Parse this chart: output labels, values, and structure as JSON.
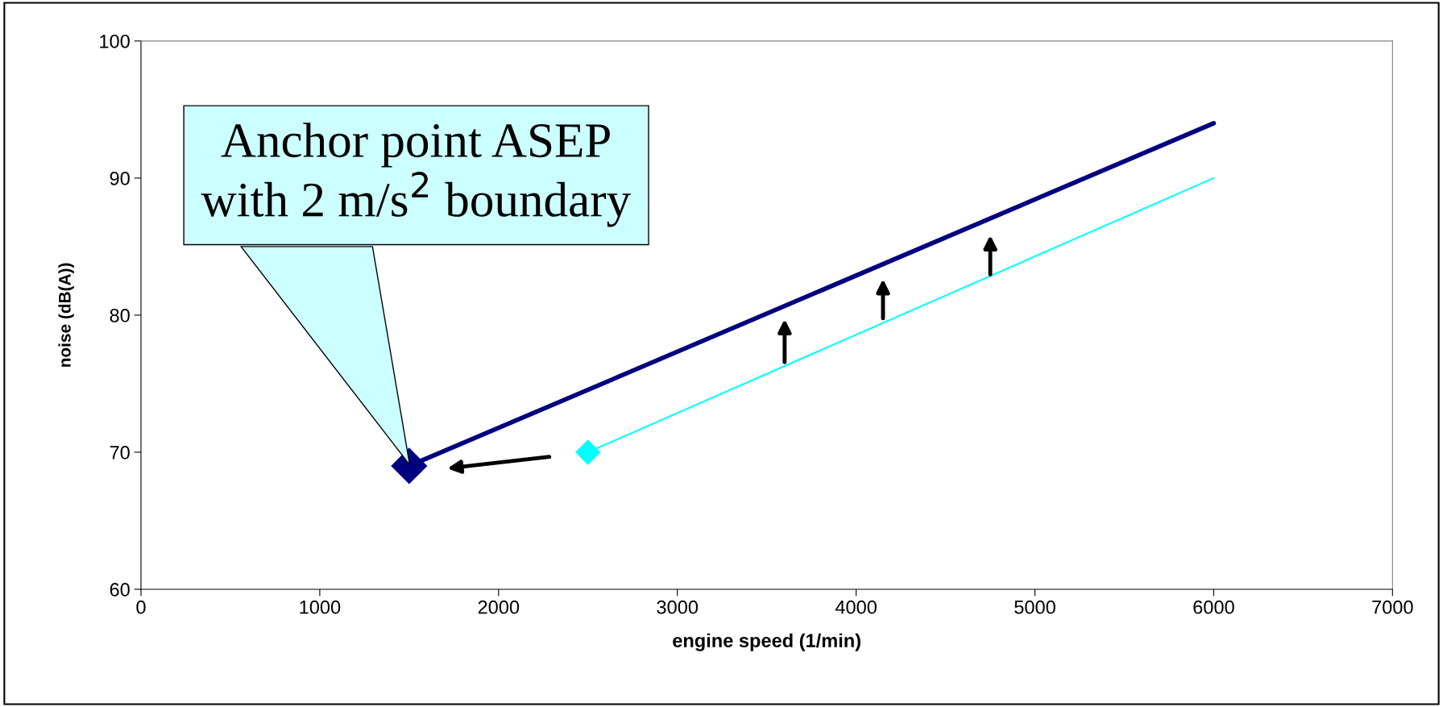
{
  "chart_data": {
    "type": "line",
    "xlabel": "engine speed (1/min)",
    "ylabel": "noise (dB(A))",
    "series": [
      {
        "color": "#000080",
        "x": [
          1500,
          6000
        ],
        "values": [
          69,
          94
        ]
      },
      {
        "color": "#00ffff",
        "x": [
          2500,
          6000
        ],
        "values": [
          70,
          90
        ]
      },
      {
        "type": "scatter",
        "color": "#000080",
        "x": [
          1500
        ],
        "values": [
          69
        ],
        "marker": "diamond"
      },
      {
        "type": "scatter",
        "color": "#00ffff",
        "x": [
          2500
        ],
        "values": [
          70
        ],
        "marker": "diamond"
      }
    ],
    "xlim": [
      0,
      7000
    ],
    "xticks": [
      0,
      1000,
      2000,
      3000,
      4000,
      5000,
      6000,
      7000
    ],
    "ylim": [
      60,
      100
    ],
    "yticks": [
      60,
      70,
      80,
      90,
      100
    ],
    "annotations": [
      "Anchor point ASEP\nwith 2 m/s$^{2}$ boundary"
    ],
    "grid": false,
    "legend": false
  }
}
